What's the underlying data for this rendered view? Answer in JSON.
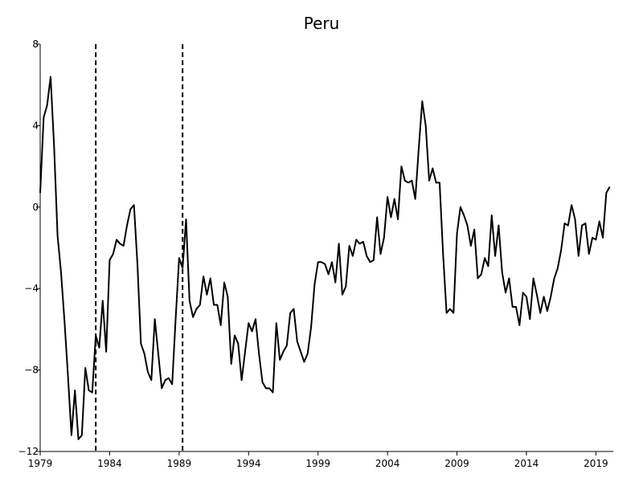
{
  "chart_data": {
    "type": "line",
    "title": "Peru",
    "xlabel": "",
    "ylabel": "",
    "xlim": [
      1979,
      2020.25
    ],
    "ylim": [
      -12,
      8
    ],
    "x_ticks": [
      1979,
      1984,
      1989,
      1994,
      1999,
      2004,
      2009,
      2014,
      2019
    ],
    "x_tick_labels": [
      "1979",
      "1984",
      "1989",
      "1994",
      "1999",
      "2004",
      "2009",
      "2014",
      "2019"
    ],
    "y_ticks": [
      -12,
      -8,
      -4,
      0,
      4,
      8
    ],
    "y_tick_labels": [
      "−12",
      "−8",
      "−4",
      "0",
      "4",
      "8"
    ],
    "grid": false,
    "legend": "none",
    "vertical_lines": [
      1983.0,
      1989.25
    ],
    "series": [
      {
        "x": [
          1979.0,
          1979.25,
          1979.5,
          1979.75,
          1980.0,
          1980.25,
          1980.5,
          1980.75,
          1981.0,
          1981.25,
          1981.5,
          1981.75,
          1982.0,
          1982.25,
          1982.5,
          1982.75,
          1983.0,
          1983.25,
          1983.5,
          1983.75,
          1984.0,
          1984.25,
          1984.5,
          1984.75,
          1985.0,
          1985.25,
          1985.5,
          1985.75,
          1986.0,
          1986.25,
          1986.5,
          1986.75,
          1987.0,
          1987.25,
          1987.5,
          1987.75,
          1988.0,
          1988.25,
          1988.5,
          1988.75,
          1989.0,
          1989.25,
          1989.5,
          1989.75,
          1990.0,
          1990.25,
          1990.5,
          1990.75,
          1991.0,
          1991.25,
          1991.5,
          1991.75,
          1992.0,
          1992.25,
          1992.5,
          1992.75,
          1993.0,
          1993.25,
          1993.5,
          1993.75,
          1994.0,
          1994.25,
          1994.5,
          1994.75,
          1995.0,
          1995.25,
          1995.5,
          1995.75,
          1996.0,
          1996.25,
          1996.5,
          1996.75,
          1997.0,
          1997.25,
          1997.5,
          1997.75,
          1998.0,
          1998.25,
          1998.5,
          1998.75,
          1999.0,
          1999.25,
          1999.5,
          1999.75,
          2000.0,
          2000.25,
          2000.5,
          2000.75,
          2001.0,
          2001.25,
          2001.5,
          2001.75,
          2002.0,
          2002.25,
          2002.5,
          2002.75,
          2003.0,
          2003.25,
          2003.5,
          2003.75,
          2004.0,
          2004.25,
          2004.5,
          2004.75,
          2005.0,
          2005.25,
          2005.5,
          2005.75,
          2006.0,
          2006.25,
          2006.5,
          2006.75,
          2007.0,
          2007.25,
          2007.5,
          2007.75,
          2008.0,
          2008.25,
          2008.5,
          2008.75,
          2009.0,
          2009.25,
          2009.5,
          2009.75,
          2010.0,
          2010.25,
          2010.5,
          2010.75,
          2011.0,
          2011.25,
          2011.5,
          2011.75,
          2012.0,
          2012.25,
          2012.5,
          2012.75,
          2013.0,
          2013.25,
          2013.5,
          2013.75,
          2014.0,
          2014.25,
          2014.5,
          2014.75,
          2015.0,
          2015.25,
          2015.5,
          2015.75,
          2016.0,
          2016.25,
          2016.5,
          2016.75,
          2017.0,
          2017.25,
          2017.5,
          2017.75,
          2018.0,
          2018.25,
          2018.5,
          2018.75,
          2019.0,
          2019.25,
          2019.5,
          2019.75,
          2020.0
        ],
        "values": [
          0.7,
          4.4,
          5.0,
          6.4,
          3.0,
          -1.4,
          -3.2,
          -5.6,
          -8.3,
          -11.2,
          -9.0,
          -11.4,
          -11.2,
          -7.9,
          -9.0,
          -9.1,
          -6.3,
          -6.9,
          -4.6,
          -7.1,
          -2.6,
          -2.3,
          -1.6,
          -1.8,
          -1.9,
          -0.9,
          -0.1,
          0.1,
          -2.8,
          -6.7,
          -7.2,
          -8.1,
          -8.5,
          -5.5,
          -7.2,
          -8.9,
          -8.5,
          -8.4,
          -8.7,
          -5.5,
          -2.5,
          -3.0,
          -0.6,
          -4.6,
          -5.4,
          -5.0,
          -4.8,
          -3.4,
          -4.3,
          -3.5,
          -4.8,
          -4.8,
          -5.8,
          -3.7,
          -4.4,
          -7.7,
          -6.3,
          -6.7,
          -8.5,
          -7.1,
          -5.7,
          -6.1,
          -5.5,
          -7.2,
          -8.6,
          -8.9,
          -8.9,
          -9.1,
          -5.7,
          -7.5,
          -7.1,
          -6.8,
          -5.2,
          -5.0,
          -6.6,
          -7.1,
          -7.6,
          -7.2,
          -5.9,
          -3.8,
          -2.7,
          -2.7,
          -2.8,
          -3.3,
          -2.7,
          -3.7,
          -1.8,
          -4.3,
          -3.9,
          -1.9,
          -2.4,
          -1.6,
          -1.8,
          -1.7,
          -2.4,
          -2.7,
          -2.6,
          -0.5,
          -2.3,
          -1.5,
          0.5,
          -0.5,
          0.4,
          -0.6,
          2.0,
          1.3,
          1.2,
          1.3,
          0.4,
          2.9,
          5.2,
          4.0,
          1.3,
          1.9,
          1.2,
          1.2,
          -2.3,
          -5.2,
          -5.0,
          -5.2,
          -1.3,
          0.0,
          -0.4,
          -0.9,
          -1.9,
          -1.1,
          -3.5,
          -3.3,
          -2.5,
          -2.9,
          -0.4,
          -2.4,
          -0.9,
          -3.2,
          -4.2,
          -3.5,
          -4.9,
          -4.9,
          -5.8,
          -4.2,
          -4.4,
          -5.5,
          -3.5,
          -4.3,
          -5.2,
          -4.4,
          -5.1,
          -4.4,
          -3.5,
          -3.0,
          -2.1,
          -0.8,
          -0.9,
          0.1,
          -0.6,
          -2.4,
          -0.9,
          -0.8,
          -2.3,
          -1.5,
          -1.6,
          -0.7,
          -1.5,
          0.7,
          1.0
        ]
      }
    ]
  }
}
